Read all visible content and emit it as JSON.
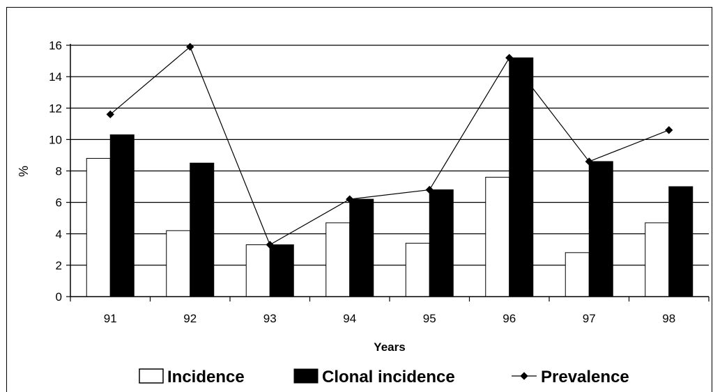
{
  "chart_data": {
    "type": "bar",
    "title": "",
    "xlabel": "Years",
    "ylabel": "%",
    "categories": [
      "91",
      "92",
      "93",
      "94",
      "95",
      "96",
      "97",
      "98"
    ],
    "ylim": [
      0,
      16
    ],
    "yticks": [
      "0",
      "2",
      "4",
      "6",
      "8",
      "10",
      "12",
      "14",
      "16"
    ],
    "grid": true,
    "legend_position": "bottom",
    "series": [
      {
        "name": "Incidence",
        "kind": "bar",
        "color": "#ffffff",
        "values": [
          8.8,
          4.2,
          3.3,
          4.7,
          3.4,
          7.6,
          2.8,
          4.7
        ]
      },
      {
        "name": "Clonal incidence",
        "kind": "bar",
        "color": "#000000",
        "values": [
          10.3,
          8.5,
          3.3,
          6.2,
          6.8,
          15.2,
          8.6,
          7.0
        ]
      },
      {
        "name": "Prevalence",
        "kind": "line",
        "color": "#000000",
        "values": [
          11.6,
          15.9,
          3.3,
          6.2,
          6.8,
          15.2,
          8.6,
          10.6
        ]
      }
    ]
  }
}
